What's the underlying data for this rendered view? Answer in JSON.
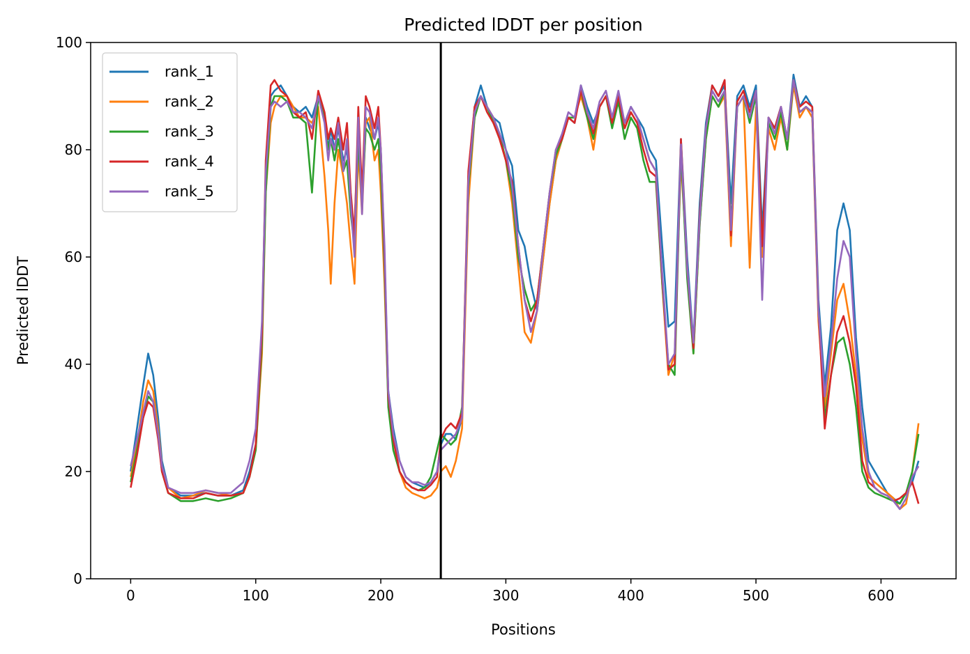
{
  "chart_data": {
    "type": "line",
    "title": "Predicted lDDT per position",
    "xlabel": "Positions",
    "ylabel": "Predicted lDDT",
    "xlim": [
      -32,
      660
    ],
    "ylim": [
      0,
      100
    ],
    "xticks": [
      0,
      100,
      200,
      300,
      400,
      500,
      600
    ],
    "yticks": [
      0,
      20,
      40,
      60,
      80,
      100
    ],
    "grid": false,
    "legend_position": "upper-left",
    "vline_x": 248,
    "vline_color": "#000000",
    "x": [
      0,
      5,
      10,
      14,
      18,
      22,
      25,
      30,
      40,
      50,
      60,
      70,
      80,
      90,
      95,
      100,
      105,
      108,
      112,
      115,
      120,
      125,
      130,
      135,
      140,
      145,
      150,
      155,
      158,
      160,
      163,
      166,
      170,
      173,
      176,
      179,
      182,
      185,
      188,
      191,
      195,
      198,
      200,
      203,
      206,
      210,
      215,
      220,
      225,
      230,
      235,
      240,
      245,
      248,
      252,
      256,
      260,
      265,
      270,
      275,
      280,
      285,
      290,
      295,
      300,
      305,
      310,
      315,
      320,
      325,
      330,
      335,
      340,
      345,
      350,
      355,
      360,
      365,
      370,
      375,
      380,
      385,
      390,
      395,
      400,
      405,
      410,
      415,
      420,
      425,
      430,
      435,
      440,
      445,
      450,
      455,
      460,
      465,
      470,
      475,
      480,
      485,
      490,
      495,
      500,
      505,
      510,
      515,
      520,
      525,
      530,
      535,
      540,
      545,
      550,
      555,
      560,
      565,
      570,
      575,
      580,
      585,
      590,
      595,
      600,
      605,
      610,
      615,
      620,
      625,
      630
    ],
    "series": [
      {
        "name": "rank_1",
        "color": "#1f77b4",
        "values": [
          20,
          28,
          36,
          42,
          38,
          30,
          22,
          17,
          15.5,
          15.5,
          16,
          15.5,
          15.5,
          16.5,
          20,
          25,
          45,
          75,
          90,
          91,
          92,
          90,
          88,
          87,
          88,
          86,
          90,
          86,
          80,
          84,
          80,
          84,
          78,
          80,
          70,
          65,
          85,
          70,
          86,
          84,
          82,
          85,
          80,
          60,
          35,
          28,
          22,
          19,
          18,
          17.5,
          17,
          18,
          20,
          25,
          27,
          27,
          26,
          30,
          75,
          88,
          92,
          88,
          86,
          85,
          80,
          77,
          65,
          62,
          55,
          50,
          60,
          70,
          78,
          82,
          86,
          85,
          92,
          88,
          85,
          88,
          90,
          86,
          90,
          85,
          88,
          86,
          84,
          80,
          78,
          62,
          47,
          48,
          82,
          60,
          44,
          70,
          85,
          92,
          90,
          92,
          70,
          90,
          92,
          88,
          92,
          65,
          86,
          84,
          88,
          82,
          94,
          88,
          90,
          88,
          52,
          36,
          47,
          65,
          70,
          65,
          45,
          32,
          22,
          20,
          18,
          16,
          15,
          14,
          16,
          18,
          22
        ]
      },
      {
        "name": "rank_2",
        "color": "#ff7f0e",
        "values": [
          19,
          25,
          33,
          37,
          35,
          28,
          21,
          17,
          15,
          15.5,
          16.5,
          16,
          15.5,
          16,
          19,
          24,
          42,
          72,
          85,
          88,
          90,
          90,
          88,
          86,
          86,
          85,
          88,
          75,
          65,
          55,
          70,
          80,
          75,
          70,
          62,
          55,
          80,
          68,
          85,
          86,
          78,
          80,
          72,
          55,
          33,
          26,
          20,
          17,
          16,
          15.5,
          15,
          15.5,
          17,
          20,
          21,
          19,
          22,
          28,
          70,
          86,
          90,
          88,
          86,
          82,
          78,
          70,
          58,
          46,
          44,
          50,
          60,
          70,
          78,
          82,
          86,
          86,
          90,
          86,
          80,
          88,
          90,
          85,
          90,
          84,
          87,
          85,
          82,
          78,
          76,
          55,
          38,
          42,
          78,
          58,
          42,
          66,
          82,
          90,
          88,
          90,
          62,
          88,
          90,
          58,
          88,
          60,
          84,
          80,
          86,
          80,
          92,
          86,
          88,
          86,
          48,
          32,
          42,
          52,
          55,
          48,
          38,
          26,
          19,
          18,
          17,
          16,
          15,
          13,
          14,
          20,
          29
        ]
      },
      {
        "name": "rank_3",
        "color": "#2ca02c",
        "values": [
          18,
          24,
          30,
          34,
          33,
          27,
          20,
          16,
          14.5,
          14.5,
          15,
          14.5,
          15,
          16,
          19,
          24,
          44,
          72,
          88,
          90,
          90,
          89,
          86,
          86,
          85,
          72,
          90,
          86,
          80,
          82,
          78,
          82,
          76,
          78,
          68,
          62,
          82,
          70,
          84,
          83,
          80,
          82,
          76,
          58,
          32,
          24,
          20,
          18,
          17,
          16.5,
          17,
          19,
          24,
          27,
          26,
          25,
          26,
          32,
          73,
          86,
          90,
          88,
          85,
          83,
          78,
          72,
          60,
          54,
          50,
          52,
          62,
          72,
          79,
          82,
          86,
          86,
          91,
          86,
          82,
          88,
          90,
          84,
          89,
          82,
          86,
          84,
          78,
          74,
          74,
          55,
          40,
          38,
          80,
          56,
          42,
          66,
          82,
          90,
          88,
          91,
          66,
          88,
          90,
          85,
          90,
          62,
          85,
          82,
          87,
          80,
          93,
          87,
          88,
          87,
          50,
          30,
          38,
          44,
          45,
          40,
          32,
          20,
          17,
          16,
          15.5,
          15,
          14.5,
          14,
          16,
          20,
          27
        ]
      },
      {
        "name": "rank_4",
        "color": "#d62728",
        "values": [
          17,
          23,
          30,
          33,
          32,
          26,
          20,
          16,
          15,
          15,
          16,
          15.5,
          15.5,
          16,
          19,
          25,
          46,
          78,
          92,
          93,
          91,
          90,
          87,
          86,
          87,
          82,
          91,
          87,
          82,
          84,
          82,
          86,
          80,
          85,
          72,
          64,
          88,
          72,
          90,
          88,
          84,
          88,
          80,
          60,
          34,
          26,
          20,
          18,
          17,
          16.5,
          16.5,
          17.5,
          19,
          26,
          28,
          29,
          28,
          31,
          76,
          88,
          90,
          87,
          85,
          82,
          78,
          74,
          62,
          52,
          48,
          52,
          62,
          72,
          80,
          82,
          86,
          85,
          91,
          87,
          83,
          88,
          90,
          85,
          90,
          84,
          87,
          85,
          80,
          76,
          75,
          56,
          39,
          40,
          82,
          58,
          43,
          68,
          84,
          92,
          90,
          93,
          64,
          89,
          91,
          87,
          91,
          62,
          86,
          84,
          88,
          82,
          93,
          88,
          89,
          88,
          50,
          28,
          38,
          46,
          49,
          44,
          36,
          22,
          18,
          17,
          16,
          15.5,
          14.5,
          15,
          16,
          18,
          14
        ]
      },
      {
        "name": "rank_5",
        "color": "#9467bd",
        "values": [
          21,
          26,
          31,
          35,
          33,
          27,
          21,
          17,
          16,
          16,
          16.5,
          16,
          16,
          18,
          22,
          28,
          48,
          76,
          88,
          89,
          88,
          89,
          87,
          87,
          86,
          84,
          90,
          85,
          78,
          82,
          80,
          85,
          76,
          82,
          70,
          60,
          86,
          68,
          88,
          87,
          82,
          86,
          80,
          62,
          35,
          27,
          22,
          19,
          18,
          18,
          17.5,
          18,
          20,
          24,
          25,
          26,
          27,
          30,
          74,
          87,
          90,
          88,
          86,
          83,
          80,
          73,
          62,
          52,
          46,
          50,
          62,
          72,
          80,
          83,
          87,
          86,
          92,
          87,
          84,
          89,
          91,
          86,
          91,
          85,
          88,
          86,
          82,
          78,
          76,
          57,
          40,
          42,
          81,
          58,
          44,
          67,
          84,
          91,
          89,
          91,
          65,
          88,
          90,
          86,
          91,
          52,
          86,
          83,
          88,
          82,
          93,
          87,
          88,
          87,
          50,
          34,
          44,
          56,
          63,
          60,
          42,
          28,
          20,
          17,
          16,
          15.5,
          14.5,
          13,
          15,
          19,
          21
        ]
      }
    ]
  }
}
